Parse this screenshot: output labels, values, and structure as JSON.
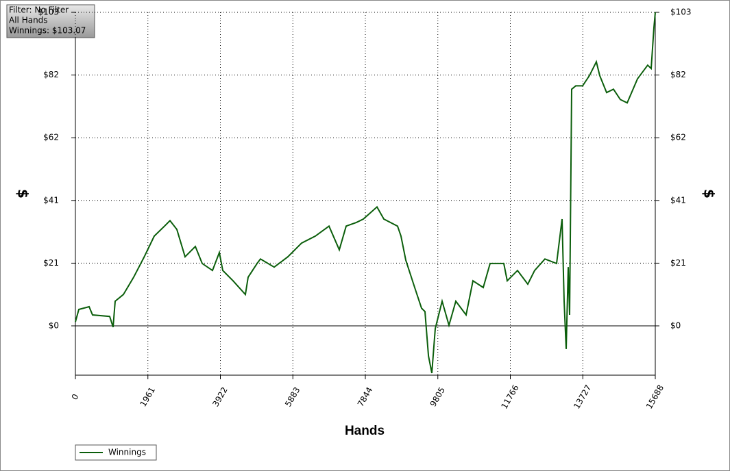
{
  "chart_data": {
    "type": "line",
    "info_box": [
      "Filter: No Filter",
      "All Hands",
      "Winnings: $103.07"
    ],
    "x_label": "Hands",
    "y_label": "$",
    "xlim": [
      0,
      15688
    ],
    "xticks": [
      0,
      1961,
      3922,
      5883,
      7844,
      9805,
      11766,
      13727,
      15688
    ],
    "ylim": [
      -16.2,
      103.07
    ],
    "yticks": [
      {
        "value": 0,
        "label": "$0"
      },
      {
        "value": 20.614,
        "label": "$21"
      },
      {
        "value": 41.228,
        "label": "$41"
      },
      {
        "value": 61.842,
        "label": "$62"
      },
      {
        "value": 82.456,
        "label": "$82"
      },
      {
        "value": 103.07,
        "label": "$103"
      }
    ],
    "grid": true,
    "legend": "bottom-left",
    "x": [
      0,
      93,
      371,
      464,
      927,
      1020,
      1076,
      1298,
      1576,
      1854,
      2132,
      2410,
      2559,
      2744,
      2967,
      3245,
      3430,
      3708,
      3894,
      3986,
      4265,
      4599,
      4673,
      4914,
      5007,
      5378,
      5749,
      6120,
      6491,
      6862,
      7140,
      7325,
      7603,
      7789,
      8160,
      8345,
      8716,
      8809,
      8938,
      9179,
      9365,
      9458,
      9551,
      9643,
      9736,
      9921,
      10107,
      10292,
      10570,
      10756,
      11034,
      11219,
      11590,
      11682,
      11961,
      12239,
      12424,
      12702,
      13017,
      13166,
      13221,
      13277,
      13333,
      13370,
      13425,
      13536,
      13722,
      13907,
      14093,
      14185,
      14371,
      14556,
      14742,
      14927,
      15205,
      15483,
      15576,
      15650,
      15688
    ],
    "series": [
      {
        "name": "Winnings",
        "color": "#0b5e0b",
        "values": [
          1.3,
          5.4,
          6.3,
          3.6,
          3.1,
          -0.4,
          8.1,
          10.3,
          16,
          22.5,
          29.5,
          32.8,
          34.6,
          31.7,
          22.7,
          26.1,
          20.5,
          18.2,
          24.1,
          18.2,
          14.8,
          10.3,
          16,
          20.5,
          22,
          19.3,
          22.7,
          27.2,
          29.5,
          32.8,
          25,
          32.8,
          34,
          35.1,
          39.1,
          35.1,
          32.8,
          29.5,
          21.6,
          12.6,
          5.8,
          4.7,
          -9.9,
          -15.5,
          -0.9,
          8.1,
          0.2,
          8.1,
          3.6,
          14.8,
          12.6,
          20.5,
          20.5,
          14.8,
          18.2,
          13.7,
          18.2,
          22,
          20.5,
          35.1,
          8.1,
          -7.6,
          19.3,
          3.6,
          77.8,
          78.9,
          78.9,
          82.3,
          86.8,
          82.3,
          76.7,
          77.8,
          74.4,
          73.3,
          81.2,
          85.7,
          84.6,
          98,
          103.07
        ]
      }
    ]
  }
}
